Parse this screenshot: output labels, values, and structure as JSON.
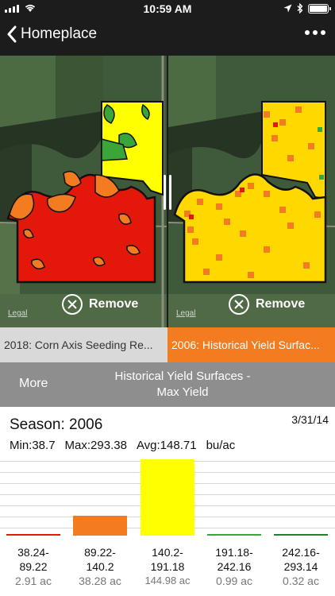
{
  "status": {
    "time": "10:59 AM"
  },
  "nav": {
    "title": "Homeplace"
  },
  "maps": {
    "left": {
      "legal": "Legal",
      "remove_label": "Remove"
    },
    "right": {
      "legal": "Legal",
      "remove_label": "Remove"
    }
  },
  "tabs": [
    {
      "label": "2018: Corn Axis Seeding Re..."
    },
    {
      "label": "2006: Historical Yield Surfac..."
    }
  ],
  "info_bar": {
    "more_label": "More",
    "title_line1": "Historical Yield Surfaces -",
    "title_line2": "Max Yield"
  },
  "summary": {
    "season": "Season: 2006",
    "date": "3/31/14",
    "min": "Min:38.7",
    "max": "Max:293.38",
    "avg": "Avg:148.71",
    "unit": "bu/ac"
  },
  "colors": {
    "red": "#e3170a",
    "orange": "#f47c20",
    "yellow": "#ffff00",
    "green": "#3aa63a",
    "nav": "#1c1c1c"
  },
  "chart_data": {
    "type": "bar",
    "categories": [
      "38.24-89.22",
      "89.22-140.2",
      "140.2-191.18",
      "191.18-242.16",
      "242.16-293.14"
    ],
    "range_lines": [
      [
        "38.24-",
        "89.22"
      ],
      [
        "89.22-",
        "140.2"
      ],
      [
        "140.2-",
        "191.18"
      ],
      [
        "191.18-",
        "242.16"
      ],
      [
        "242.16-",
        "293.14"
      ]
    ],
    "area_labels": [
      "2.91 ac",
      "38.28 ac",
      "144.98 ac",
      "0.99 ac",
      "0.32 ac"
    ],
    "values": [
      2.91,
      38.28,
      144.98,
      0.99,
      0.32
    ],
    "colors": [
      "#e3170a",
      "#f47c20",
      "#ffff00",
      "#3aa63a",
      "#1e7f2e"
    ],
    "ylim": [
      0,
      144.98
    ]
  }
}
